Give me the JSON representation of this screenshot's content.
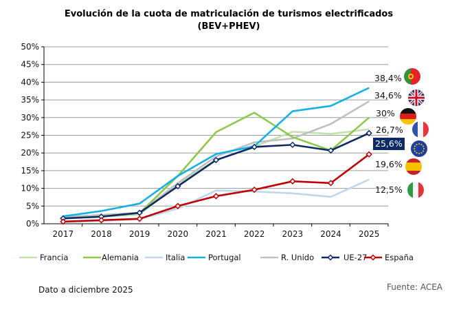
{
  "chart_data": {
    "type": "line",
    "title": "Evolución de la cuota de matriculación de turismos electrificados",
    "subtitle": "(BEV+PHEV)",
    "xlabel": "",
    "ylabel": "",
    "categories": [
      "2017",
      "2018",
      "2019",
      "2020",
      "2021",
      "2022",
      "2023",
      "2024",
      "2025"
    ],
    "yticks": [
      "0%",
      "5%",
      "10%",
      "15%",
      "20%",
      "25%",
      "30%",
      "35%",
      "40%",
      "45%",
      "50%"
    ],
    "ylim": [
      0,
      50
    ],
    "grid": true,
    "legend_position": "bottom",
    "series": [
      {
        "name": "Francia",
        "color": "#c3e0b0",
        "markers": false,
        "values": [
          1.6,
          2.0,
          2.6,
          11.2,
          18.0,
          21.8,
          26.0,
          25.4,
          26.7
        ],
        "end_label": "26,7%",
        "flag": "france-flag"
      },
      {
        "name": "Alemania",
        "color": "#8cc84b",
        "markers": false,
        "values": [
          1.6,
          2.0,
          3.0,
          13.5,
          25.9,
          31.4,
          24.5,
          20.7,
          30
        ],
        "end_label": "30%",
        "flag": "germany-flag"
      },
      {
        "name": "Italia",
        "color": "#bdd7ee",
        "markers": false,
        "values": [
          0.5,
          0.8,
          1.3,
          4.3,
          9.4,
          9.1,
          8.6,
          7.6,
          12.5
        ],
        "end_label": "12,5%",
        "flag": "italy-flag"
      },
      {
        "name": "Portugal",
        "color": "#16b0e8",
        "markers": false,
        "values": [
          2.1,
          3.6,
          5.7,
          13.5,
          19.7,
          21.9,
          31.8,
          33.3,
          38.4
        ],
        "end_label": "38,4%",
        "flag": "portugal-flag"
      },
      {
        "name": "R. Unido",
        "color": "#bfbfbf",
        "markers": false,
        "values": [
          1.9,
          2.5,
          3.1,
          11.5,
          19.0,
          23.0,
          24.1,
          28.2,
          34.6
        ],
        "end_label": "34,6%",
        "flag": "uk-flag"
      },
      {
        "name": "UE-27",
        "color": "#0e2a66",
        "markers": true,
        "values": [
          1.5,
          2.0,
          3.1,
          10.6,
          18.0,
          21.7,
          22.3,
          20.7,
          25.6
        ],
        "end_label": "25,6%",
        "flag": "eu-flag",
        "highlight": true
      },
      {
        "name": "España",
        "color": "#c00000",
        "markers": true,
        "values": [
          0.6,
          1.0,
          1.4,
          5.0,
          7.8,
          9.6,
          12.0,
          11.5,
          19.6
        ],
        "end_label": "19,6%",
        "flag": "spain-flag"
      }
    ]
  },
  "footer": {
    "note": "Dato a diciembre 2025",
    "source": "Fuente: ACEA"
  }
}
